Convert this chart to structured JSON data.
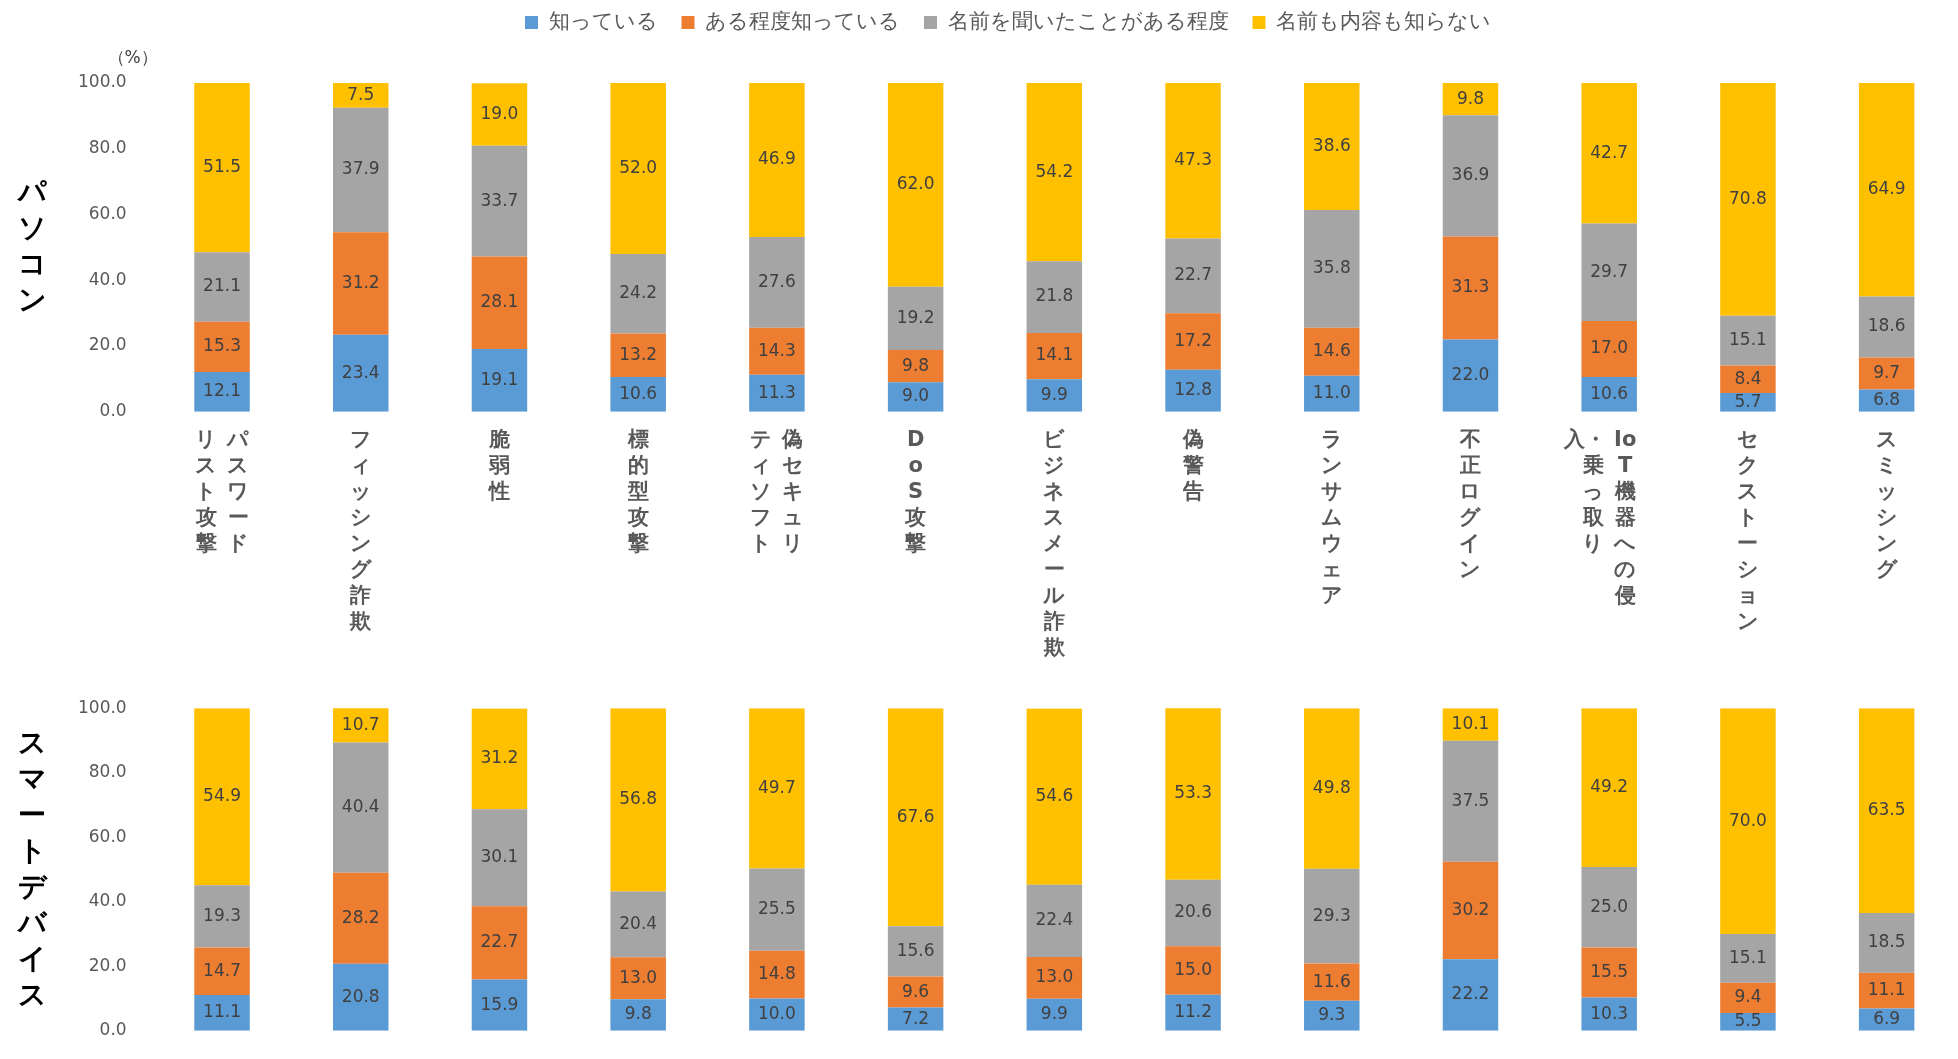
{
  "chart_data": [
    {
      "type": "bar",
      "title": "パソコン",
      "ylabel": "（%）",
      "stacked": true,
      "legend": "top",
      "grid": false,
      "categories": [
        "パスワードリスト攻撃",
        "フィッシング詐欺",
        "脆弱性",
        "標的型攻撃",
        "偽セキュリティソフト",
        "DoS攻撃",
        "ビジネスメール詐欺",
        "偽警告",
        "ランサムウェア",
        "不正ログイン",
        "IoT機器への侵入・乗っ取り",
        "セクストーション",
        "スミッシング"
      ],
      "ylim": [
        0,
        100
      ],
      "yticks": [
        {
          "value": 0,
          "label": "0.0"
        },
        {
          "value": 20,
          "label": "20.0"
        },
        {
          "value": 40,
          "label": "40.0"
        },
        {
          "value": 60,
          "label": "60.0"
        },
        {
          "value": 80,
          "label": "80.0"
        },
        {
          "value": 100,
          "label": "100.0"
        }
      ],
      "series": [
        {
          "name": "知っている",
          "color": "#5b9bd5",
          "values": [
            12.1,
            23.4,
            19.1,
            10.6,
            11.3,
            9.0,
            9.9,
            12.8,
            11.0,
            22.0,
            10.6,
            5.7,
            6.8
          ],
          "value_labels": [
            "12.1",
            "23.4",
            "19.1",
            "10.6",
            "11.3",
            "9.0",
            "9.9",
            "12.8",
            "11.0",
            "22.0",
            "10.6",
            "5.7",
            "6.8"
          ]
        },
        {
          "name": "ある程度知っている",
          "color": "#ed7d31",
          "values": [
            15.3,
            31.2,
            28.1,
            13.2,
            14.3,
            9.8,
            14.1,
            17.2,
            14.6,
            31.3,
            17.0,
            8.4,
            9.7
          ],
          "value_labels": [
            "15.3",
            "31.2",
            "28.1",
            "13.2",
            "14.3",
            "9.8",
            "14.1",
            "17.2",
            "14.6",
            "31.3",
            "17.0",
            "8.4",
            "9.7"
          ]
        },
        {
          "name": "名前を聞いたことがある程度",
          "color": "#a5a5a5",
          "values": [
            21.1,
            37.9,
            33.7,
            24.2,
            27.6,
            19.2,
            21.8,
            22.7,
            35.8,
            36.9,
            29.7,
            15.1,
            18.6
          ],
          "value_labels": [
            "21.1",
            "37.9",
            "33.7",
            "24.2",
            "27.6",
            "19.2",
            "21.8",
            "22.7",
            "35.8",
            "36.9",
            "29.7",
            "15.1",
            "18.6"
          ]
        },
        {
          "name": "名前も内容も知らない",
          "color": "#ffc000",
          "values": [
            51.5,
            7.5,
            19.0,
            52.0,
            46.9,
            62.0,
            54.2,
            47.3,
            38.6,
            9.8,
            42.7,
            70.8,
            64.9
          ],
          "value_labels": [
            "51.5",
            "7.5",
            "19.0",
            "52.0",
            "46.9",
            "62.0",
            "54.2",
            "47.3",
            "38.6",
            "9.8",
            "42.7",
            "70.8",
            "64.9"
          ]
        }
      ]
    },
    {
      "type": "bar",
      "title": "スマートデバイス",
      "stacked": true,
      "legend": false,
      "grid": false,
      "tick_labels": "y",
      "categories": [
        null,
        null,
        null,
        null,
        null,
        null,
        null,
        null,
        null,
        null,
        null,
        null,
        null
      ],
      "ylim": [
        0,
        100
      ],
      "yticks": [
        {
          "value": 0,
          "label": "0.0"
        },
        {
          "value": 20,
          "label": "20.0"
        },
        {
          "value": 40,
          "label": "40.0"
        },
        {
          "value": 60,
          "label": "60.0"
        },
        {
          "value": 80,
          "label": "80.0"
        },
        {
          "value": 100,
          "label": "100.0"
        }
      ],
      "series": [
        {
          "color": "#5b9bd5",
          "values": [
            11.1,
            20.8,
            15.9,
            9.8,
            10.0,
            7.2,
            9.9,
            11.2,
            9.3,
            22.2,
            10.3,
            5.5,
            6.9
          ],
          "value_labels": [
            "11.1",
            "20.8",
            "15.9",
            "9.8",
            "10.0",
            "7.2",
            "9.9",
            "11.2",
            "9.3",
            "22.2",
            "10.3",
            "5.5",
            "6.9"
          ]
        },
        {
          "color": "#ed7d31",
          "values": [
            14.7,
            28.2,
            22.7,
            13.0,
            14.8,
            9.6,
            13.0,
            15.0,
            11.6,
            30.2,
            15.5,
            9.4,
            11.1
          ],
          "value_labels": [
            "14.7",
            "28.2",
            "22.7",
            "13.0",
            "14.8",
            "9.6",
            "13.0",
            "15.0",
            "11.6",
            "30.2",
            "15.5",
            "9.4",
            "11.1"
          ]
        },
        {
          "color": "#a5a5a5",
          "values": [
            19.3,
            40.4,
            30.1,
            20.4,
            25.5,
            15.6,
            22.4,
            20.6,
            29.3,
            37.5,
            25.0,
            15.1,
            18.5
          ],
          "value_labels": [
            "19.3",
            "40.4",
            "30.1",
            "20.4",
            "25.5",
            "15.6",
            "22.4",
            "20.6",
            "29.3",
            "37.5",
            "25.0",
            "15.1",
            "18.5"
          ]
        },
        {
          "color": "#ffc000",
          "values": [
            54.9,
            10.7,
            31.2,
            56.8,
            49.7,
            67.6,
            54.6,
            53.3,
            49.8,
            10.1,
            49.2,
            70.0,
            63.5
          ],
          "value_labels": [
            "54.9",
            "10.7",
            "31.2",
            "56.8",
            "49.7",
            "67.6",
            "54.6",
            "53.3",
            "49.8",
            "10.1",
            "49.2",
            "70.0",
            "63.5"
          ]
        }
      ]
    }
  ]
}
